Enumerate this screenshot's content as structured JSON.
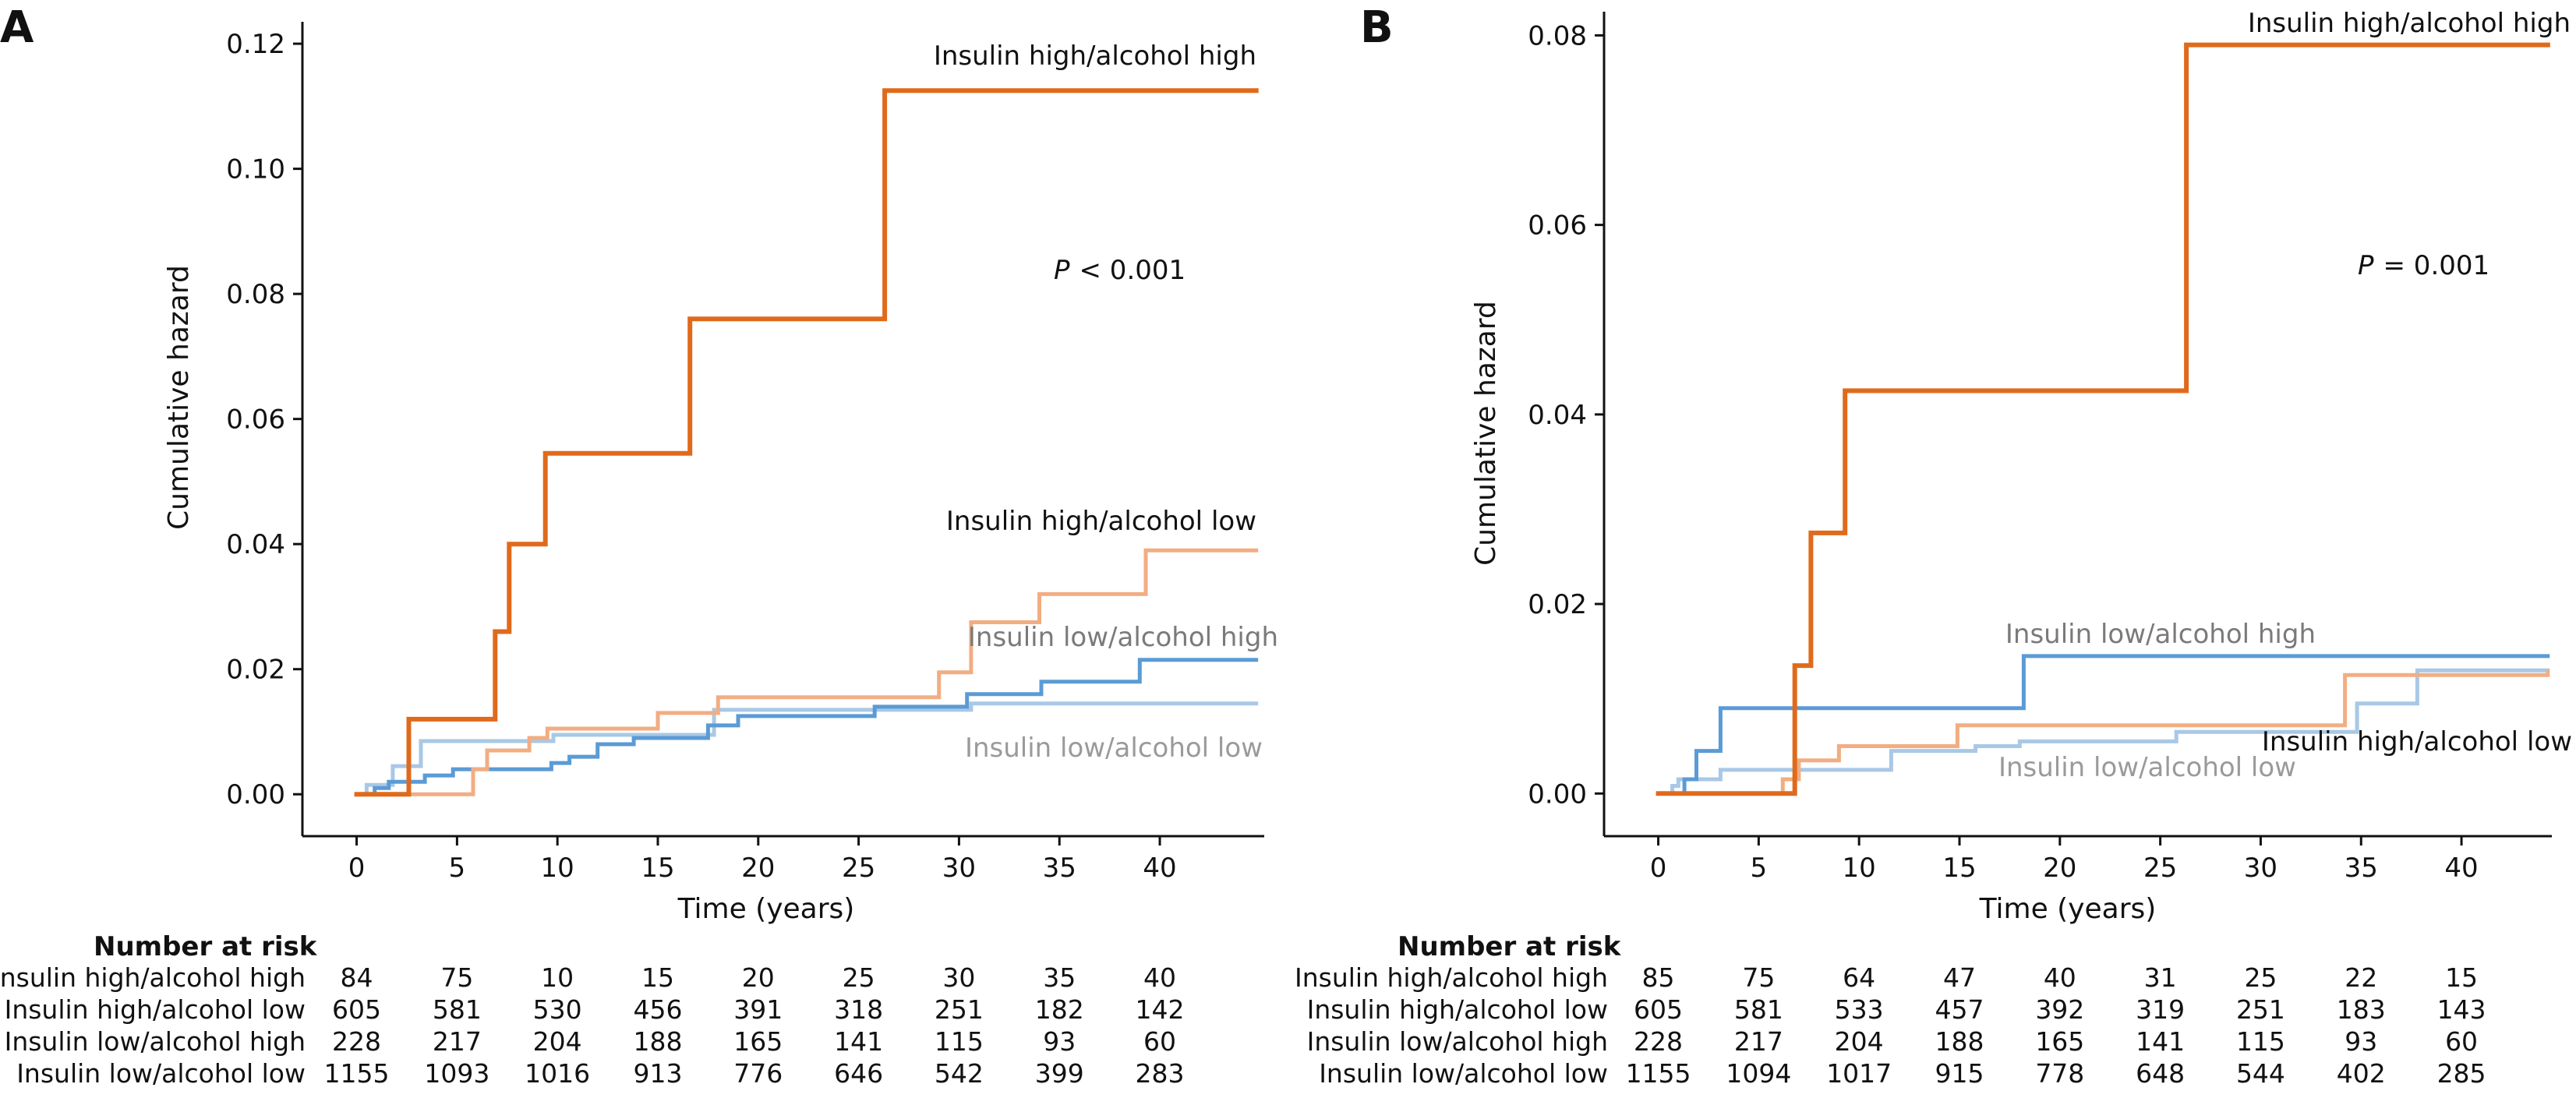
{
  "chart_data": [
    {
      "panel": "A",
      "type": "line",
      "step": true,
      "xlabel": "Time (years)",
      "ylabel": "Cumulative hazard",
      "xlim": [
        -2.7,
        45.2
      ],
      "ylim": [
        -0.0067,
        0.1235
      ],
      "xticks": [
        0,
        5,
        10,
        15,
        20,
        25,
        30,
        35,
        40
      ],
      "yticks": [
        0.0,
        0.02,
        0.04,
        0.06,
        0.08,
        0.1,
        0.12
      ],
      "ytick_labels": [
        "0.00",
        "0.02",
        "0.04",
        "0.06",
        "0.08",
        "0.10",
        "0.12"
      ],
      "annotation": {
        "p_label": "P",
        "p_text": "< 0.001"
      },
      "series": [
        {
          "name": "Insulin high/alcohol high",
          "color": "#e06a1b",
          "x": [
            0,
            2.6,
            6.9,
            7.6,
            9.4,
            16.6,
            26.3,
            44.8
          ],
          "y": [
            0,
            0.012,
            0.026,
            0.04,
            0.0545,
            0.076,
            0.1125,
            0.1125
          ]
        },
        {
          "name": "Insulin high/alcohol low",
          "color": "#f2ad82",
          "x": [
            0,
            5.8,
            6.5,
            8.6,
            9.5,
            15.0,
            18.0,
            29.0,
            30.6,
            34.0,
            39.3,
            44.8
          ],
          "y": [
            0,
            0.004,
            0.007,
            0.009,
            0.0105,
            0.013,
            0.0155,
            0.0195,
            0.0275,
            0.032,
            0.039,
            0.039
          ]
        },
        {
          "name": "Insulin low/alcohol high",
          "color": "#5b9bd5",
          "x": [
            0,
            0.9,
            1.6,
            3.4,
            4.8,
            9.7,
            10.6,
            12.0,
            13.8,
            17.5,
            19.0,
            25.8,
            30.4,
            34.1,
            39.0,
            44.8
          ],
          "y": [
            0,
            0.001,
            0.002,
            0.003,
            0.004,
            0.005,
            0.006,
            0.008,
            0.009,
            0.011,
            0.0125,
            0.014,
            0.016,
            0.018,
            0.0215,
            0.0215
          ]
        },
        {
          "name": "Insulin low/alcohol low",
          "color": "#a9c8e6",
          "x": [
            0,
            0.5,
            1.8,
            3.2,
            9.8,
            17.8,
            30.6,
            44.8
          ],
          "y": [
            0,
            0.0015,
            0.0045,
            0.0085,
            0.0095,
            0.0135,
            0.0145,
            0.0145
          ]
        }
      ],
      "risk_table": {
        "heading": "Number at risk",
        "rows": [
          {
            "label": "Insulin high/alcohol high",
            "values": [
              "84",
              "75",
              "10",
              "15",
              "20",
              "25",
              "30",
              "35",
              "40"
            ]
          },
          {
            "label": "Insulin high/alcohol low",
            "values": [
              "605",
              "581",
              "530",
              "456",
              "391",
              "318",
              "251",
              "182",
              "142"
            ]
          },
          {
            "label": "Insulin low/alcohol high",
            "values": [
              "228",
              "217",
              "204",
              "188",
              "165",
              "141",
              "115",
              "93",
              "60"
            ]
          },
          {
            "label": "Insulin low/alcohol low",
            "values": [
              "1155",
              "1093",
              "1016",
              "913",
              "776",
              "646",
              "542",
              "399",
              "283"
            ]
          }
        ]
      }
    },
    {
      "panel": "B",
      "type": "line",
      "step": true,
      "xlabel": "Time (years)",
      "ylabel": "Cumulative hazard",
      "xlim": [
        -2.7,
        44.5
      ],
      "ylim": [
        -0.0045,
        0.0825
      ],
      "xticks": [
        0,
        5,
        10,
        15,
        20,
        25,
        30,
        35,
        40
      ],
      "yticks": [
        0.0,
        0.02,
        0.04,
        0.06,
        0.08
      ],
      "ytick_labels": [
        "0.00",
        "0.02",
        "0.04",
        "0.06",
        "0.08"
      ],
      "annotation": {
        "p_label": "P",
        "p_text": "= 0.001"
      },
      "series": [
        {
          "name": "Insulin high/alcohol high",
          "color": "#e06a1b",
          "x": [
            0,
            6.8,
            7.6,
            9.3,
            26.3,
            44.3
          ],
          "y": [
            0,
            0.0135,
            0.0275,
            0.0425,
            0.079,
            0.079
          ]
        },
        {
          "name": "Insulin high/alcohol low",
          "color": "#f2ad82",
          "x": [
            0,
            6.2,
            7.0,
            9.0,
            14.9,
            34.2,
            44.3
          ],
          "y": [
            0,
            0.0015,
            0.0035,
            0.005,
            0.0072,
            0.0125,
            0.0128
          ]
        },
        {
          "name": "Insulin low/alcohol high",
          "color": "#5b9bd5",
          "x": [
            0,
            1.3,
            1.9,
            3.1,
            18.2,
            44.3
          ],
          "y": [
            0,
            0.0015,
            0.0045,
            0.009,
            0.0145,
            0.0145
          ]
        },
        {
          "name": "Insulin low/alcohol low",
          "color": "#a9c8e6",
          "x": [
            0,
            0.7,
            1.0,
            1.7,
            3.1,
            11.6,
            15.8,
            18.0,
            25.8,
            34.8,
            37.8,
            44.3
          ],
          "y": [
            0,
            0.0008,
            0.0015,
            0.0015,
            0.0025,
            0.0045,
            0.005,
            0.0055,
            0.0065,
            0.0095,
            0.013,
            0.013
          ]
        }
      ],
      "risk_table": {
        "heading": "Number at risk",
        "rows": [
          {
            "label": "Insulin high/alcohol high",
            "values": [
              "85",
              "75",
              "64",
              "47",
              "40",
              "31",
              "25",
              "22",
              "15"
            ]
          },
          {
            "label": "Insulin high/alcohol low",
            "values": [
              "605",
              "581",
              "533",
              "457",
              "392",
              "319",
              "251",
              "183",
              "143"
            ]
          },
          {
            "label": "Insulin low/alcohol high",
            "values": [
              "228",
              "217",
              "204",
              "188",
              "165",
              "141",
              "115",
              "93",
              "60"
            ]
          },
          {
            "label": "Insulin low/alcohol low",
            "values": [
              "1155",
              "1094",
              "1017",
              "915",
              "778",
              "648",
              "544",
              "402",
              "285"
            ]
          }
        ]
      }
    }
  ]
}
